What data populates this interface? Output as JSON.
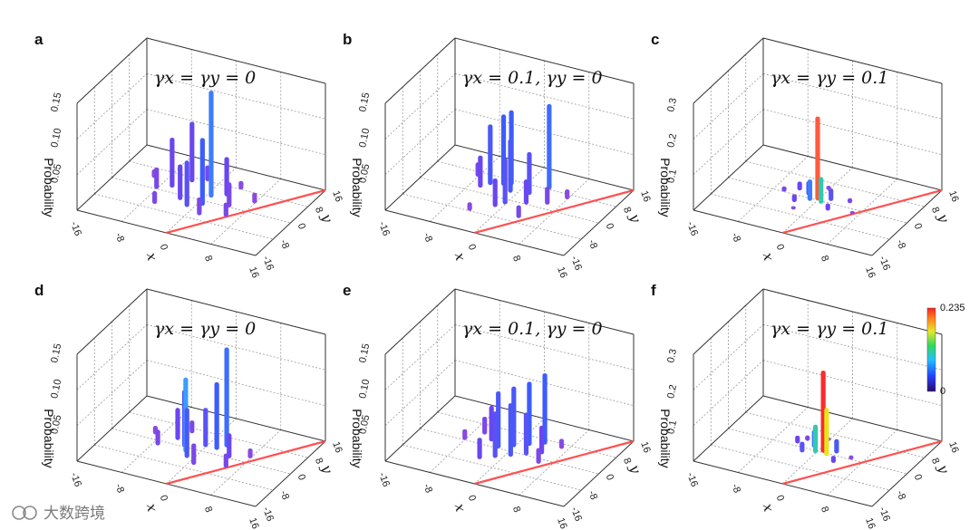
{
  "chart_data": [
    {
      "type": "bar3d",
      "panel": "a",
      "title": "γx = γy = 0",
      "ylabel": "Probability",
      "xlabel": "x",
      "zlabel": "y",
      "ylim": [
        0,
        0.15
      ],
      "zticks": [
        "0.05",
        "0.10",
        "0.15"
      ],
      "xticks": [
        "-16",
        "-8",
        "0",
        "8",
        "16"
      ],
      "yticks": [
        "16",
        "8",
        "0",
        "-8",
        "-16"
      ],
      "bars": [
        {
          "x": 1,
          "y": 2,
          "p": 0.15,
          "color": "#3d7cff"
        },
        {
          "x": 1,
          "y": -2,
          "p": 0.095,
          "color": "#3d5cff"
        },
        {
          "x": -4,
          "y": 6,
          "p": 0.085,
          "color": "#6a46f0"
        },
        {
          "x": -6,
          "y": 2,
          "p": 0.07,
          "color": "#6a46f0"
        },
        {
          "x": -1,
          "y": -4,
          "p": 0.065,
          "color": "#5a52f5"
        },
        {
          "x": 3,
          "y": 4,
          "p": 0.055,
          "color": "#6a46f0"
        },
        {
          "x": -3,
          "y": -2,
          "p": 0.05,
          "color": "#6a46f0"
        },
        {
          "x": 5,
          "y": 0,
          "p": 0.035,
          "color": "#7a48e8"
        },
        {
          "x": -8,
          "y": 0,
          "p": 0.03,
          "color": "#7a48e8"
        },
        {
          "x": 2,
          "y": -6,
          "p": 0.025,
          "color": "#7a48e8"
        },
        {
          "x": -2,
          "y": 8,
          "p": 0.022,
          "color": "#7a48e8"
        },
        {
          "x": 6,
          "y": -4,
          "p": 0.02,
          "color": "#7a48e8"
        },
        {
          "x": -6,
          "y": -6,
          "p": 0.018,
          "color": "#7a48e8"
        },
        {
          "x": 8,
          "y": 4,
          "p": 0.015,
          "color": "#8a4ae0"
        },
        {
          "x": -10,
          "y": 4,
          "p": 0.012,
          "color": "#8a4ae0"
        },
        {
          "x": 4,
          "y": 8,
          "p": 0.012,
          "color": "#8a4ae0"
        }
      ]
    },
    {
      "type": "bar3d",
      "panel": "b",
      "title": "γx = 0.1, γy = 0",
      "ylabel": "Probability",
      "xlabel": "x",
      "zlabel": "y",
      "ylim": [
        0,
        0.15
      ],
      "zticks": [
        "0.05",
        "0.10",
        "0.15"
      ],
      "xticks": [
        "-16",
        "-8",
        "0",
        "8",
        "16"
      ],
      "yticks": [
        "16",
        "8",
        "0",
        "-8",
        "-16"
      ],
      "bars": [
        {
          "x": -2,
          "y": 6,
          "p": 0.105,
          "color": "#3d5cff"
        },
        {
          "x": -3,
          "y": 5,
          "p": 0.1,
          "color": "#3d5cff"
        },
        {
          "x": 4,
          "y": 8,
          "p": 0.12,
          "color": "#3d6cff"
        },
        {
          "x": -5,
          "y": 4,
          "p": 0.085,
          "color": "#4a58f8"
        },
        {
          "x": -1,
          "y": 3,
          "p": 0.075,
          "color": "#4a58f8"
        },
        {
          "x": 0,
          "y": -2,
          "p": 0.065,
          "color": "#5a52f5"
        },
        {
          "x": 2,
          "y": 4,
          "p": 0.06,
          "color": "#5a52f5"
        },
        {
          "x": -6,
          "y": 2,
          "p": 0.045,
          "color": "#6a46f0"
        },
        {
          "x": -1,
          "y": -4,
          "p": 0.04,
          "color": "#6a46f0"
        },
        {
          "x": 3,
          "y": 0,
          "p": 0.035,
          "color": "#6a46f0"
        },
        {
          "x": 6,
          "y": 2,
          "p": 0.025,
          "color": "#7a48e8"
        },
        {
          "x": -8,
          "y": 6,
          "p": 0.02,
          "color": "#7a48e8"
        },
        {
          "x": 4,
          "y": -6,
          "p": 0.018,
          "color": "#7a48e8"
        },
        {
          "x": 8,
          "y": 6,
          "p": 0.014,
          "color": "#8a4ae0"
        },
        {
          "x": -4,
          "y": -8,
          "p": 0.012,
          "color": "#8a4ae0"
        }
      ]
    },
    {
      "type": "bar3d",
      "panel": "c",
      "title": "γx = γy = 0.1",
      "ylabel": "Probability",
      "xlabel": "x",
      "zlabel": "y",
      "ylim": [
        0,
        0.3
      ],
      "zticks": [
        "0.1",
        "0.2",
        "0.3"
      ],
      "xticks": [
        "-16",
        "-8",
        "0",
        "8",
        "16"
      ],
      "yticks": [
        "16",
        "8",
        "0",
        "-8",
        "-16"
      ],
      "bars": [
        {
          "x": 0,
          "y": 0,
          "p": 0.235,
          "color": "#ff5a3c"
        },
        {
          "x": 1,
          "y": -1,
          "p": 0.075,
          "color": "#33c9b0"
        },
        {
          "x": -1,
          "y": -1,
          "p": 0.06,
          "color": "#3d7cff"
        },
        {
          "x": -2,
          "y": 1,
          "p": 0.04,
          "color": "#4a58f8"
        },
        {
          "x": 2,
          "y": 1,
          "p": 0.035,
          "color": "#5a52f5"
        },
        {
          "x": -4,
          "y": 2,
          "p": 0.025,
          "color": "#6a46f0"
        },
        {
          "x": -3,
          "y": -3,
          "p": 0.022,
          "color": "#6a46f0"
        },
        {
          "x": 3,
          "y": -3,
          "p": 0.02,
          "color": "#6a46f0"
        },
        {
          "x": -6,
          "y": 0,
          "p": 0.015,
          "color": "#7a48e8"
        },
        {
          "x": 5,
          "y": 2,
          "p": 0.014,
          "color": "#7a48e8"
        },
        {
          "x": 0,
          "y": 5,
          "p": 0.012,
          "color": "#8a4ae0"
        },
        {
          "x": -2,
          "y": -6,
          "p": 0.01,
          "color": "#8a4ae0"
        },
        {
          "x": 7,
          "y": -2,
          "p": 0.009,
          "color": "#8a4ae0"
        }
      ]
    },
    {
      "type": "bar3d",
      "panel": "d",
      "title": "γx = γy = 0",
      "ylabel": "Probability",
      "xlabel": "x",
      "zlabel": "y",
      "ylim": [
        0,
        0.15
      ],
      "zticks": [
        "0.05",
        "0.10",
        "0.15"
      ],
      "xticks": [
        "-16",
        "-8",
        "0",
        "8",
        "16"
      ],
      "yticks": [
        "16",
        "8",
        "0",
        "-8",
        "-16"
      ],
      "bars": [
        {
          "x": 3,
          "y": 4,
          "p": 0.14,
          "color": "#3d6cff"
        },
        {
          "x": -2,
          "y": -2,
          "p": 0.105,
          "color": "#3d9cff"
        },
        {
          "x": 2,
          "y": 2,
          "p": 0.095,
          "color": "#3d5cff"
        },
        {
          "x": -3,
          "y": 0,
          "p": 0.08,
          "color": "#4a58f8"
        },
        {
          "x": -1,
          "y": -4,
          "p": 0.07,
          "color": "#4a58f8"
        },
        {
          "x": 0,
          "y": 2,
          "p": 0.055,
          "color": "#5a52f5"
        },
        {
          "x": -5,
          "y": 2,
          "p": 0.045,
          "color": "#6a46f0"
        },
        {
          "x": 5,
          "y": 0,
          "p": 0.035,
          "color": "#6a46f0"
        },
        {
          "x": 1,
          "y": -6,
          "p": 0.03,
          "color": "#7a48e8"
        },
        {
          "x": -7,
          "y": -2,
          "p": 0.022,
          "color": "#7a48e8"
        },
        {
          "x": 6,
          "y": -4,
          "p": 0.02,
          "color": "#7a48e8"
        },
        {
          "x": -4,
          "y": 6,
          "p": 0.018,
          "color": "#7a48e8"
        },
        {
          "x": 8,
          "y": 2,
          "p": 0.014,
          "color": "#8a4ae0"
        },
        {
          "x": -9,
          "y": 2,
          "p": 0.012,
          "color": "#8a4ae0"
        }
      ]
    },
    {
      "type": "bar3d",
      "panel": "e",
      "title": "γx = 0.1, γy = 0",
      "ylabel": "Probability",
      "xlabel": "x",
      "zlabel": "y",
      "ylim": [
        0,
        0.15
      ],
      "zticks": [
        "0.05",
        "0.10",
        "0.15"
      ],
      "xticks": [
        "-16",
        "-8",
        "0",
        "8",
        "16"
      ],
      "yticks": [
        "16",
        "8",
        "0",
        "-8",
        "-16"
      ],
      "bars": [
        {
          "x": 4,
          "y": 6,
          "p": 0.1,
          "color": "#3d5cff"
        },
        {
          "x": 2,
          "y": 4,
          "p": 0.09,
          "color": "#3d5cff"
        },
        {
          "x": 0,
          "y": 2,
          "p": 0.085,
          "color": "#4a58f8"
        },
        {
          "x": -2,
          "y": 0,
          "p": 0.08,
          "color": "#4a58f8"
        },
        {
          "x": 1,
          "y": -2,
          "p": 0.075,
          "color": "#4a58f8"
        },
        {
          "x": -1,
          "y": -4,
          "p": 0.065,
          "color": "#5a52f5"
        },
        {
          "x": 3,
          "y": 0,
          "p": 0.06,
          "color": "#5a52f5"
        },
        {
          "x": -4,
          "y": 2,
          "p": 0.05,
          "color": "#6a46f0"
        },
        {
          "x": 5,
          "y": 2,
          "p": 0.04,
          "color": "#6a46f0"
        },
        {
          "x": -3,
          "y": -6,
          "p": 0.03,
          "color": "#6a46f0"
        },
        {
          "x": -6,
          "y": 4,
          "p": 0.025,
          "color": "#7a48e8"
        },
        {
          "x": 6,
          "y": -2,
          "p": 0.022,
          "color": "#7a48e8"
        },
        {
          "x": -8,
          "y": 0,
          "p": 0.015,
          "color": "#8a4ae0"
        },
        {
          "x": 7,
          "y": 6,
          "p": 0.014,
          "color": "#8a4ae0"
        }
      ]
    },
    {
      "type": "bar3d",
      "panel": "f",
      "title": "γx = γy = 0.1",
      "ylabel": "Probability",
      "xlabel": "x",
      "zlabel": "y",
      "ylim": [
        0,
        0.3
      ],
      "zticks": [
        "0.1",
        "0.2",
        "0.3"
      ],
      "xticks": [
        "-16",
        "-8",
        "0",
        "8",
        "16"
      ],
      "yticks": [
        "16",
        "8",
        "0",
        "-8",
        "-16"
      ],
      "bars": [
        {
          "x": 1,
          "y": 0,
          "p": 0.23,
          "color": "#ff2a2a"
        },
        {
          "x": 2,
          "y": -1,
          "p": 0.135,
          "color": "#e6e61e"
        },
        {
          "x": 0,
          "y": -1,
          "p": 0.08,
          "color": "#33c9b0"
        },
        {
          "x": -1,
          "y": 1,
          "p": 0.05,
          "color": "#3d7cff"
        },
        {
          "x": 3,
          "y": 1,
          "p": 0.04,
          "color": "#4a58f8"
        },
        {
          "x": -2,
          "y": -2,
          "p": 0.03,
          "color": "#5a52f5"
        },
        {
          "x": -4,
          "y": 1,
          "p": 0.022,
          "color": "#6a46f0"
        },
        {
          "x": 4,
          "y": -3,
          "p": 0.02,
          "color": "#6a46f0"
        },
        {
          "x": -3,
          "y": 3,
          "p": 0.015,
          "color": "#7a48e8"
        },
        {
          "x": 6,
          "y": 0,
          "p": 0.012,
          "color": "#8a4ae0"
        },
        {
          "x": 0,
          "y": 5,
          "p": 0.01,
          "color": "#8a4ae0"
        }
      ]
    }
  ],
  "colorbar": {
    "max_label": "0.235",
    "min_label": "0",
    "stops": [
      "#2b0a6e",
      "#2040ff",
      "#22c0ff",
      "#2fd95a",
      "#e8e82a",
      "#ff8a1a",
      "#ff2020"
    ]
  },
  "watermark": {
    "text": "大数跨境"
  },
  "diagonal_color": "#ff5050"
}
